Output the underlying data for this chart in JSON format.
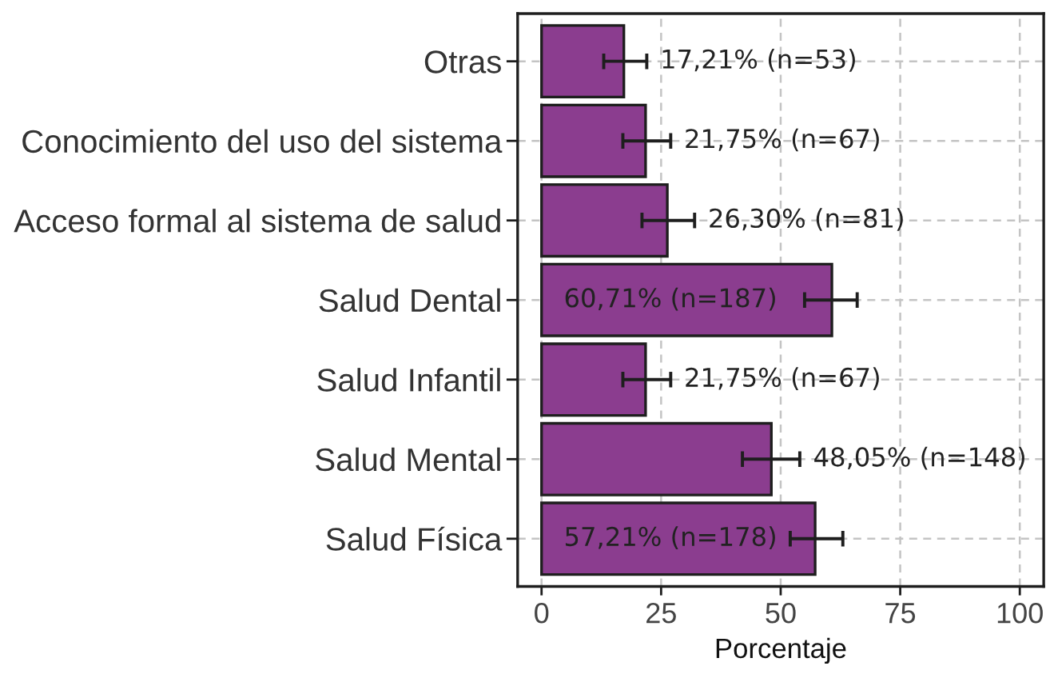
{
  "chart_data": {
    "type": "bar",
    "orientation": "horizontal",
    "xlabel": "Porcentaje",
    "categories": [
      "Otras",
      "Conocimiento del uso del sistema",
      "Acceso formal al sistema de salud",
      "Salud Dental",
      "Salud Infantil",
      "Salud Mental",
      "Salud Física"
    ],
    "values": [
      17.21,
      21.75,
      26.3,
      60.71,
      21.75,
      48.05,
      57.21
    ],
    "errors": [
      [
        13,
        22
      ],
      [
        17,
        27
      ],
      [
        21,
        32
      ],
      [
        55,
        66
      ],
      [
        17,
        27
      ],
      [
        42,
        54
      ],
      [
        52,
        63
      ]
    ],
    "value_labels": [
      "17,21% (n=53)",
      "21,75% (n=67)",
      "26,30% (n=81)",
      "60,71% (n=187)",
      "21,75% (n=67)",
      "48,05% (n=148)",
      "57,21% (n=178)"
    ],
    "color": "#8b3d8f",
    "xlim": [
      -5,
      105
    ],
    "xticks": [
      0,
      25,
      50,
      75,
      100
    ],
    "grid": true
  }
}
